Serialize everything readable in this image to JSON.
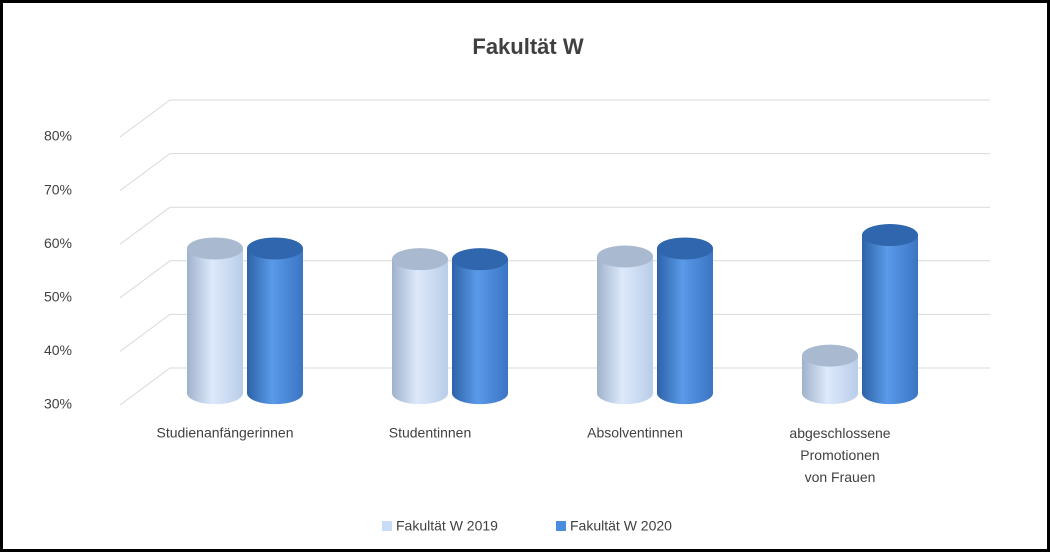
{
  "chart_data": {
    "type": "bar3d",
    "title": "Fakultät W",
    "categories": [
      "Studienanfängerinnen",
      "Studentinnen",
      "Absolventinnen",
      "abgeschlossene\nPromotionen\nvon Frauen"
    ],
    "series": [
      {
        "name": "Fakultät W 2019",
        "color": "#c9dcf7",
        "values": [
          57,
          55,
          55.5,
          37
        ]
      },
      {
        "name": "Fakultät W 2020",
        "color": "#4a8de0",
        "values": [
          57,
          55,
          57,
          59.5
        ]
      }
    ],
    "ylim": [
      30,
      80
    ],
    "yticks": [
      {
        "value": 30,
        "label": "30%"
      },
      {
        "value": 40,
        "label": "40%"
      },
      {
        "value": 50,
        "label": "50%"
      },
      {
        "value": 60,
        "label": "60%"
      },
      {
        "value": 70,
        "label": "70%"
      },
      {
        "value": 80,
        "label": "80%"
      }
    ],
    "grid": true,
    "legend": "bottom"
  }
}
